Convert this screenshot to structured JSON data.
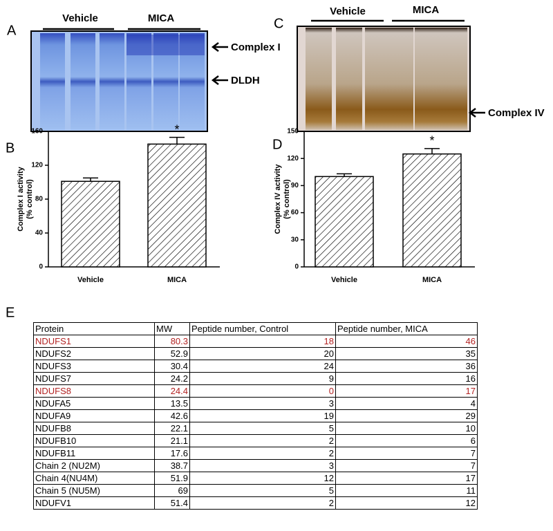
{
  "panels": [
    "A",
    "B",
    "C",
    "D",
    "E"
  ],
  "gels": [
    {
      "groups": [
        "Vehicle",
        "MICA"
      ],
      "bands": [
        "Complex I",
        "DLDH"
      ]
    },
    {
      "groups": [
        "Vehicle",
        "MICA"
      ],
      "bands": [
        "Complex IV"
      ]
    }
  ],
  "chart_data": [
    {
      "type": "bar",
      "categories": [
        "Vehicle",
        "MICA"
      ],
      "values": [
        101,
        145
      ],
      "errors": [
        4,
        8
      ],
      "value_annotations": [
        null,
        "*"
      ],
      "ylabel": [
        "Complex I activity",
        "(% control)"
      ],
      "ylim": [
        0,
        160
      ],
      "yticks": [
        0,
        40,
        80,
        120,
        160
      ],
      "hatch": true,
      "color": "#000000"
    },
    {
      "type": "bar",
      "categories": [
        "Vehicle",
        "MICA"
      ],
      "values": [
        100,
        125
      ],
      "errors": [
        3,
        6
      ],
      "value_annotations": [
        null,
        "*"
      ],
      "ylabel": [
        "Complex IV activity",
        "(% control)"
      ],
      "ylim": [
        0,
        150
      ],
      "yticks": [
        0,
        30,
        60,
        90,
        120,
        150
      ],
      "hatch": true,
      "color": "#000000"
    }
  ],
  "table": {
    "header": [
      "Protein",
      "MW",
      "Peptide number, Control",
      "Peptide number, MICA"
    ],
    "highlight_color": "#b22222",
    "rows": [
      {
        "cells": [
          "NDUFS1",
          80.3,
          18,
          46
        ],
        "highlight": true
      },
      {
        "cells": [
          "NDUFS2",
          52.9,
          20,
          35
        ]
      },
      {
        "cells": [
          "NDUFS3",
          30.4,
          24,
          36
        ]
      },
      {
        "cells": [
          "NDUFS7",
          24.2,
          9,
          16
        ]
      },
      {
        "cells": [
          "NDUFS8",
          24.4,
          0,
          17
        ],
        "highlight": true
      },
      {
        "cells": [
          "NDUFA5",
          13.5,
          3,
          4
        ]
      },
      {
        "cells": [
          "NDUFA9",
          42.6,
          19,
          29
        ]
      },
      {
        "cells": [
          "NDUFB8",
          22.1,
          5,
          10
        ]
      },
      {
        "cells": [
          "NDUFB10",
          21.1,
          2,
          6
        ]
      },
      {
        "cells": [
          "NDUFB11",
          17.6,
          2,
          7
        ]
      },
      {
        "cells": [
          "Chain 2 (NU2M)",
          38.7,
          3,
          7
        ]
      },
      {
        "cells": [
          "Chain 4(NU4M)",
          51.9,
          12,
          17
        ]
      },
      {
        "cells": [
          "Chain 5 (NU5M)",
          69,
          5,
          11
        ]
      },
      {
        "cells": [
          "NDUFV1",
          51.4,
          2,
          12
        ]
      }
    ]
  }
}
